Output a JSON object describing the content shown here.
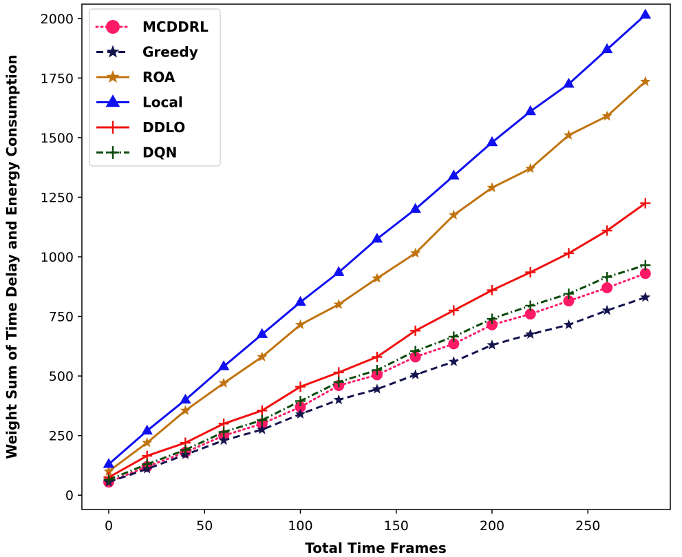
{
  "chart_data": {
    "type": "line",
    "xlabel": "Total Time Frames",
    "ylabel": "Weight Sum of Time Delay and Energy Consumption",
    "xlim": [
      -14,
      293
    ],
    "ylim": [
      -60,
      2060
    ],
    "xticks": [
      0,
      50,
      100,
      150,
      200,
      250
    ],
    "yticks": [
      0,
      250,
      500,
      750,
      1000,
      1250,
      1500,
      1750,
      2000
    ],
    "grid": false,
    "legend_position": "top-left",
    "x": [
      0,
      20,
      40,
      60,
      80,
      100,
      120,
      140,
      160,
      180,
      200,
      220,
      240,
      260,
      280
    ],
    "series": [
      {
        "name": "MCDDRL",
        "color": "#ff1a66",
        "dash": "2,5",
        "marker": "circle",
        "values": [
          55,
          120,
          180,
          250,
          300,
          370,
          460,
          505,
          580,
          635,
          715,
          760,
          815,
          870,
          930
        ]
      },
      {
        "name": "Greedy",
        "color": "#14144f",
        "dash": "10,6",
        "marker": "star",
        "values": [
          55,
          110,
          170,
          230,
          275,
          340,
          400,
          445,
          505,
          560,
          630,
          675,
          715,
          775,
          830
        ]
      },
      {
        "name": "ROA",
        "color": "#c0730f",
        "dash": "",
        "marker": "star",
        "values": [
          100,
          220,
          355,
          470,
          580,
          715,
          800,
          910,
          1015,
          1175,
          1290,
          1370,
          1510,
          1590,
          1735
        ]
      },
      {
        "name": "Local",
        "color": "#1010f0",
        "dash": "",
        "marker": "triangle",
        "values": [
          130,
          270,
          400,
          540,
          675,
          810,
          935,
          1075,
          1200,
          1340,
          1480,
          1610,
          1725,
          1870,
          2015
        ]
      },
      {
        "name": "DDLO",
        "color": "#f01010",
        "dash": "",
        "marker": "plus",
        "values": [
          75,
          165,
          220,
          300,
          355,
          455,
          515,
          580,
          690,
          775,
          860,
          935,
          1015,
          1110,
          1225
        ]
      },
      {
        "name": "DQN",
        "color": "#0a4a0a",
        "dash": "10,4,2,4",
        "marker": "plus",
        "values": [
          65,
          130,
          190,
          265,
          315,
          395,
          475,
          525,
          605,
          665,
          740,
          795,
          845,
          915,
          965
        ]
      }
    ]
  }
}
